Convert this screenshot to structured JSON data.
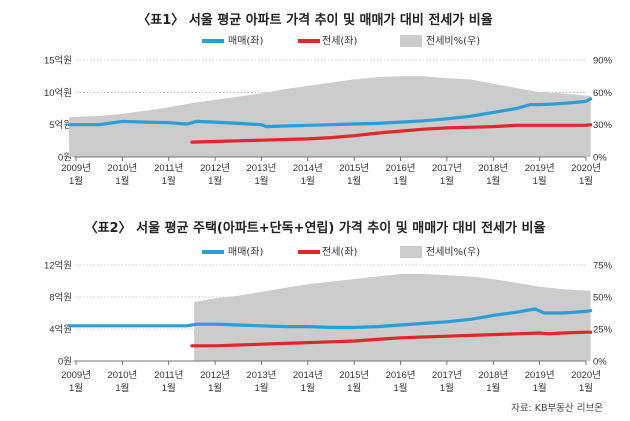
{
  "chart_data": [
    {
      "type": "area+line",
      "title": "〈표1〉 서울 평균 아파트 가격 추이 및 매매가 대비 전세가 비율",
      "legend": [
        "매매(좌)",
        "전세(좌)",
        "전세비%(우)"
      ],
      "legend_position": "top-right",
      "left_ticks": [
        "15억원",
        "10억원",
        "5억원",
        "0원"
      ],
      "right_ticks": [
        "90%",
        "60%",
        "30%",
        "0%"
      ],
      "left_ylim": [
        0,
        15
      ],
      "right_ylim": [
        0,
        90
      ],
      "x_range": [
        2009.0,
        2020.0
      ],
      "x_ticks": [
        {
          "year": "2009년",
          "month": "1월"
        },
        {
          "year": "2010년",
          "month": "1월"
        },
        {
          "year": "2011년",
          "month": "1월"
        },
        {
          "year": "2012년",
          "month": "1월"
        },
        {
          "year": "2013년",
          "month": "1월"
        },
        {
          "year": "2014년",
          "month": "1월"
        },
        {
          "year": "2015년",
          "month": "1월"
        },
        {
          "year": "2016년",
          "month": "1월"
        },
        {
          "year": "2017년",
          "month": "1월"
        },
        {
          "year": "2018년",
          "month": "1월"
        },
        {
          "year": "2019년",
          "month": "1월"
        },
        {
          "year": "2020년",
          "month": "1월"
        }
      ],
      "series": [
        {
          "name": "매매(좌)",
          "unit": "억원",
          "axis": "left",
          "color": "#2a9fd6",
          "x": [
            2008.85,
            2009.5,
            2010.0,
            2010.5,
            2011.0,
            2011.4,
            2011.6,
            2012.0,
            2012.5,
            2013.0,
            2013.1,
            2013.5,
            2014.0,
            2014.5,
            2015.0,
            2015.5,
            2016.0,
            2016.5,
            2017.0,
            2017.5,
            2018.0,
            2018.5,
            2018.8,
            2019.0,
            2019.3,
            2019.7,
            2020.0,
            2020.1
          ],
          "values": [
            5.0,
            5.0,
            5.5,
            5.4,
            5.3,
            5.1,
            5.5,
            5.4,
            5.2,
            5.0,
            4.7,
            4.8,
            4.9,
            5.0,
            5.1,
            5.2,
            5.4,
            5.6,
            5.9,
            6.3,
            6.9,
            7.5,
            8.1,
            8.1,
            8.2,
            8.4,
            8.6,
            9.0
          ]
        },
        {
          "name": "전세(좌)",
          "unit": "억원",
          "axis": "left",
          "color": "#e0272b",
          "x": [
            2011.5,
            2012.0,
            2012.5,
            2013.0,
            2013.5,
            2014.0,
            2014.5,
            2015.0,
            2015.5,
            2016.0,
            2016.5,
            2017.0,
            2017.5,
            2018.0,
            2018.5,
            2019.0,
            2019.5,
            2020.0,
            2020.1
          ],
          "values": [
            2.3,
            2.4,
            2.5,
            2.6,
            2.7,
            2.8,
            3.0,
            3.3,
            3.7,
            4.0,
            4.3,
            4.5,
            4.6,
            4.7,
            4.9,
            4.9,
            4.9,
            4.9,
            5.0
          ]
        },
        {
          "name": "전세비%(우)",
          "unit": "%",
          "axis": "right",
          "color": "#cccccc",
          "x": [
            2008.85,
            2009.5,
            2010.0,
            2010.5,
            2011.0,
            2011.5,
            2012.0,
            2012.5,
            2013.0,
            2013.5,
            2014.0,
            2014.5,
            2015.0,
            2015.5,
            2016.0,
            2016.5,
            2017.0,
            2017.5,
            2018.0,
            2018.5,
            2019.0,
            2019.5,
            2020.0,
            2020.1
          ],
          "values": [
            37,
            38,
            40,
            43,
            46,
            50,
            53,
            56,
            59,
            63,
            66,
            69,
            72,
            74,
            75,
            75,
            73,
            72,
            68,
            64,
            60,
            59,
            57,
            57
          ]
        }
      ]
    },
    {
      "type": "area+line",
      "title": "〈표2〉 서울 평균 주택(아파트+단독+연립) 가격 추이 및 매매가 대비 전세가 비율",
      "legend": [
        "매매(좌)",
        "전세(좌)",
        "전세비%(우)"
      ],
      "legend_position": "top-right",
      "left_ticks": [
        "12억원",
        "8억원",
        "4억원",
        "0원"
      ],
      "right_ticks": [
        "75%",
        "50%",
        "25%",
        "0%"
      ],
      "left_ylim": [
        0,
        12
      ],
      "right_ylim": [
        0,
        75
      ],
      "x_range": [
        2009.0,
        2020.0
      ],
      "x_ticks": [
        {
          "year": "2009년",
          "month": "1월"
        },
        {
          "year": "2010년",
          "month": "1월"
        },
        {
          "year": "2011년",
          "month": "1월"
        },
        {
          "year": "2012년",
          "month": "1월"
        },
        {
          "year": "2013년",
          "month": "1월"
        },
        {
          "year": "2014년",
          "month": "1월"
        },
        {
          "year": "2015년",
          "month": "1월"
        },
        {
          "year": "2016년",
          "month": "1월"
        },
        {
          "year": "2017년",
          "month": "1월"
        },
        {
          "year": "2018년",
          "month": "1월"
        },
        {
          "year": "2019년",
          "month": "1월"
        },
        {
          "year": "2020년",
          "month": "1월"
        }
      ],
      "series": [
        {
          "name": "매매(좌)",
          "unit": "억원",
          "axis": "left",
          "color": "#2a9fd6",
          "x": [
            2008.85,
            2009.5,
            2010.0,
            2010.5,
            2011.0,
            2011.4,
            2011.6,
            2012.0,
            2012.5,
            2013.0,
            2013.5,
            2014.0,
            2014.5,
            2015.0,
            2015.5,
            2016.0,
            2016.5,
            2017.0,
            2017.5,
            2018.0,
            2018.5,
            2018.9,
            2019.1,
            2019.5,
            2020.0,
            2020.1
          ],
          "values": [
            4.4,
            4.4,
            4.4,
            4.4,
            4.4,
            4.4,
            4.6,
            4.6,
            4.5,
            4.4,
            4.3,
            4.3,
            4.2,
            4.2,
            4.3,
            4.5,
            4.7,
            4.9,
            5.2,
            5.7,
            6.1,
            6.5,
            6.0,
            6.0,
            6.2,
            6.3
          ]
        },
        {
          "name": "전세(좌)",
          "unit": "억원",
          "axis": "left",
          "color": "#e0272b",
          "x": [
            2011.5,
            2012.0,
            2012.5,
            2013.0,
            2013.5,
            2014.0,
            2014.5,
            2015.0,
            2015.5,
            2016.0,
            2016.5,
            2017.0,
            2017.5,
            2018.0,
            2018.5,
            2019.0,
            2019.2,
            2019.5,
            2020.0,
            2020.1
          ],
          "values": [
            1.9,
            1.9,
            2.0,
            2.1,
            2.2,
            2.3,
            2.4,
            2.5,
            2.7,
            2.9,
            3.0,
            3.1,
            3.2,
            3.3,
            3.4,
            3.5,
            3.4,
            3.5,
            3.6,
            3.6
          ]
        },
        {
          "name": "전세비%(우)",
          "unit": "%",
          "axis": "right",
          "color": "#cccccc",
          "x": [
            2011.55,
            2012.0,
            2012.5,
            2013.0,
            2013.5,
            2014.0,
            2014.5,
            2015.0,
            2015.5,
            2016.0,
            2016.5,
            2017.0,
            2017.5,
            2018.0,
            2018.5,
            2019.0,
            2019.5,
            2020.0,
            2020.1
          ],
          "values": [
            46,
            49,
            51,
            54,
            57,
            60,
            62,
            64,
            66,
            68,
            68,
            67,
            66,
            64,
            61,
            58,
            56,
            55,
            55
          ]
        }
      ]
    }
  ],
  "source": "자료: KB부동산 리브온"
}
